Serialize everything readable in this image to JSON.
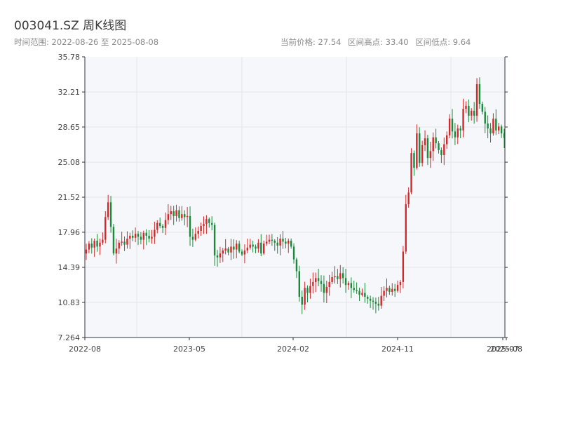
{
  "header": {
    "title": "003041.SZ 周K线图",
    "subtitle": "时间范围: 2022-08-26 至 2025-08-08",
    "stats": [
      "当前价格: 27.54",
      "区间高点: 33.40",
      "区间低点: 9.64"
    ]
  },
  "colors": {
    "up": "#d62728",
    "down": "#1a8a3a",
    "background": "#f5f7fa",
    "grid": "#e3e6ea",
    "axis": "#2f3640"
  },
  "chart_data": {
    "type": "candlestick",
    "title": "003041.SZ 周K线图",
    "ylim": [
      7.264,
      35.78
    ],
    "yticks": [
      "35.78",
      "32.21",
      "28.65",
      "25.08",
      "21.52",
      "17.96",
      "14.39",
      "10.83",
      "7.264"
    ],
    "xticks": [
      "2022-08",
      "2023-05",
      "2024-02",
      "2024-11",
      "2025-07",
      "2025-08"
    ],
    "grid": true,
    "closes": [
      16.2,
      16.8,
      16.4,
      17.1,
      16.5,
      16.9,
      17.2,
      19.5,
      21.0,
      18.5,
      15.8,
      16.3,
      16.9,
      17.0,
      16.7,
      17.3,
      17.6,
      17.4,
      17.8,
      17.5,
      17.2,
      17.9,
      17.6,
      17.3,
      17.5,
      18.2,
      18.9,
      18.6,
      18.4,
      19.2,
      19.8,
      20.1,
      19.6,
      20.2,
      19.4,
      19.8,
      19.5,
      19.6,
      17.5,
      17.2,
      17.8,
      18.1,
      18.6,
      18.8,
      19.3,
      18.9,
      18.7,
      15.6,
      15.4,
      15.8,
      16.1,
      16.3,
      15.9,
      16.5,
      16.2,
      16.8,
      16.0,
      15.7,
      16.1,
      16.4,
      16.7,
      16.5,
      16.3,
      16.9,
      15.8,
      16.8,
      17.0,
      17.2,
      17.1,
      16.9,
      16.6,
      17.3,
      17.0,
      16.8,
      17.1,
      16.5,
      15.2,
      14.0,
      11.4,
      10.6,
      12.3,
      11.8,
      12.5,
      12.9,
      13.3,
      13.0,
      12.7,
      11.8,
      12.4,
      12.9,
      13.4,
      13.5,
      13.2,
      13.8,
      13.3,
      12.6,
      12.8,
      12.3,
      12.1,
      12.0,
      11.6,
      11.8,
      11.4,
      11.2,
      11.0,
      10.9,
      10.7,
      10.5,
      11.5,
      12.0,
      12.3,
      11.9,
      12.2,
      12.0,
      12.6,
      12.9,
      16.0,
      20.8,
      22.0,
      26.0,
      24.5,
      28.0,
      25.0,
      26.8,
      27.5,
      25.5,
      26.2,
      27.6,
      27.0,
      26.3,
      25.8,
      26.9,
      27.8,
      29.5,
      28.2,
      27.6,
      28.5,
      28.3,
      30.5,
      30.8,
      29.8,
      30.3,
      29.8,
      33.0,
      31.0,
      30.2,
      29.0,
      28.5,
      28.0,
      29.5,
      28.3,
      28.7,
      28.0,
      27.54
    ],
    "range_high": 33.4,
    "range_low": 9.64,
    "current": 27.54
  }
}
